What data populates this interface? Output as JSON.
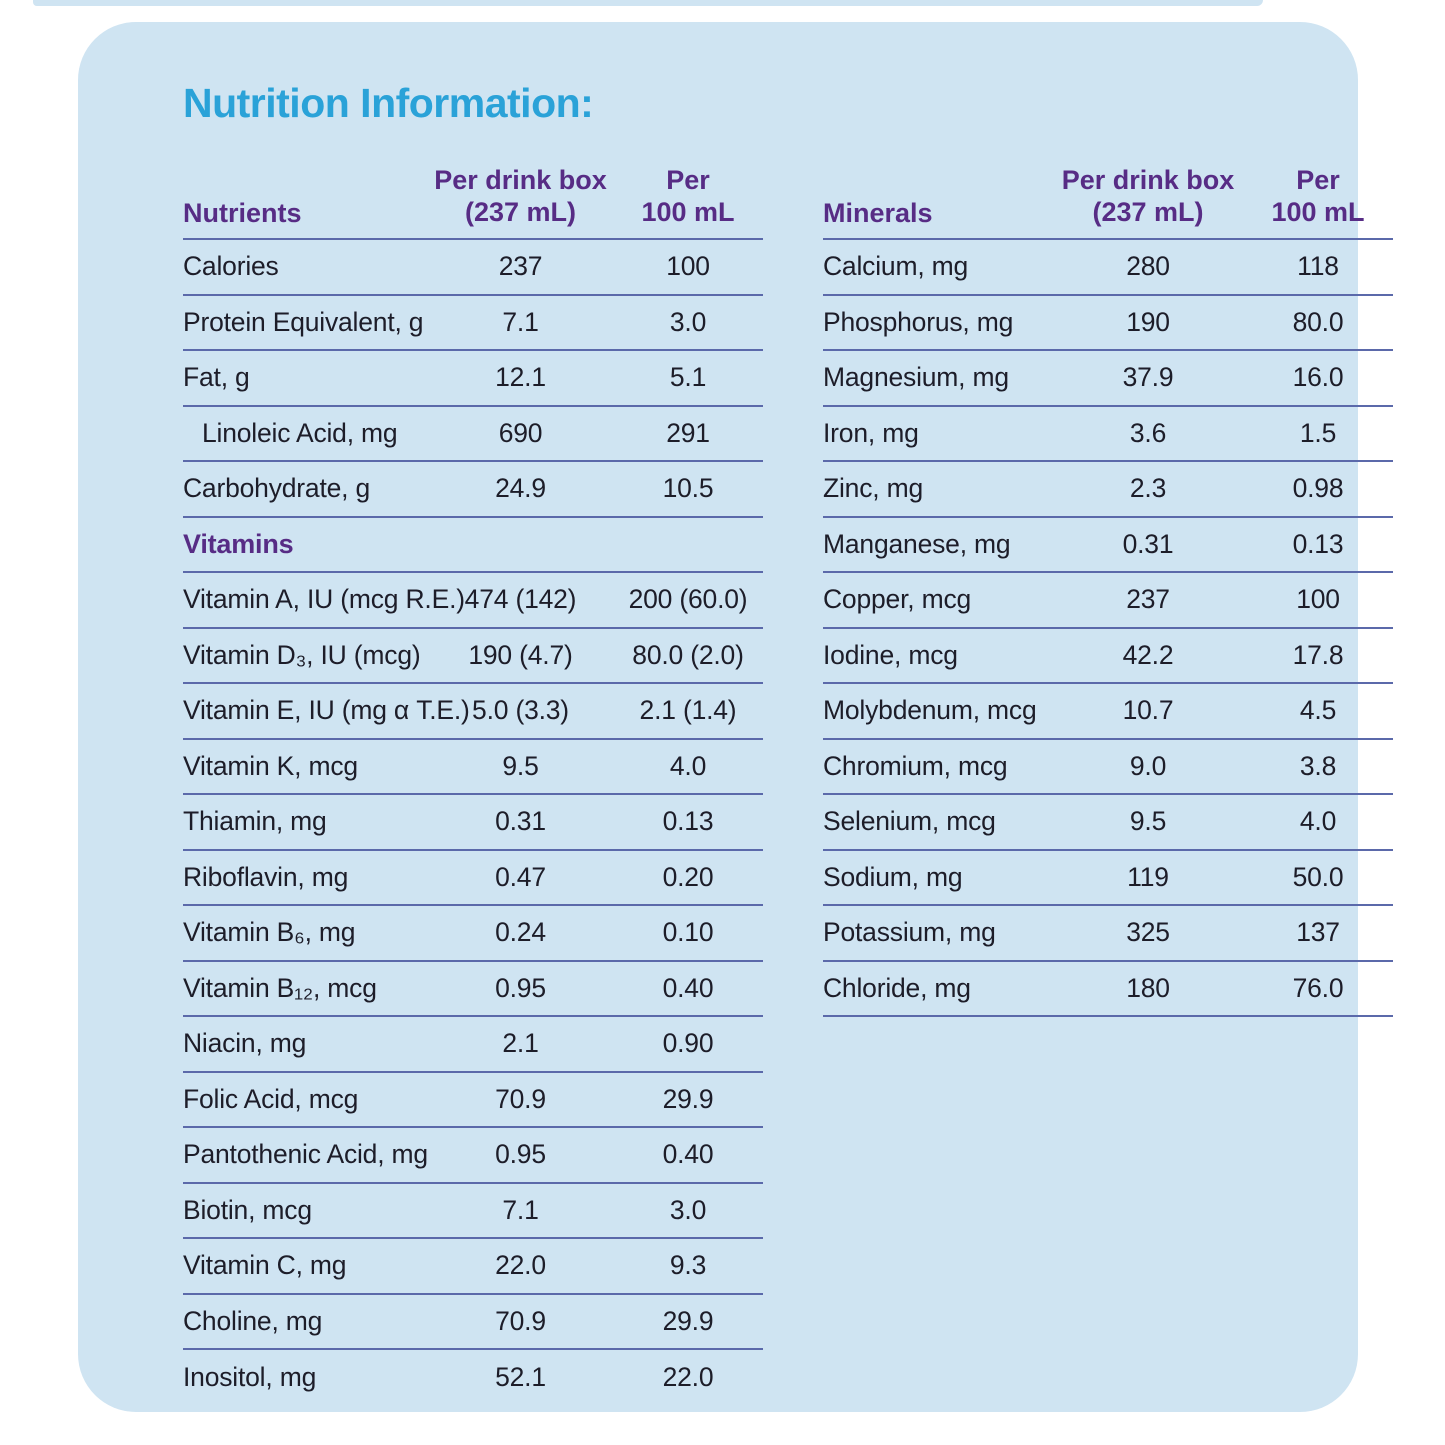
{
  "title": "Nutrition Information:",
  "colors": {
    "card_background": "#cfe4f2",
    "title": "#2aa2d8",
    "heading_purple": "#572c85",
    "body_text": "#1d1d29",
    "divider_line": "#5b69aa"
  },
  "tables": [
    {
      "name": "nutrients",
      "col_header": {
        "label": "Nutrients",
        "col1_line1": "Per drink box",
        "col1_line2": "(237 mL)",
        "col2_line1": "Per",
        "col2_line2": "100 mL"
      },
      "rows": [
        {
          "label": "Calories",
          "per_box": "237",
          "per_100": "100"
        },
        {
          "label": "Protein Equivalent, g",
          "per_box": "7.1",
          "per_100": "3.0"
        },
        {
          "label": "Fat, g",
          "per_box": "12.1",
          "per_100": "5.1"
        },
        {
          "label": "Linoleic Acid, mg",
          "per_box": "690",
          "per_100": "291",
          "indent": true
        },
        {
          "label": "Carbohydrate, g",
          "per_box": "24.9",
          "per_100": "10.5"
        },
        {
          "section": "Vitamins"
        },
        {
          "label": "Vitamin A, IU (mcg R.E.)",
          "per_box": "474 (142)",
          "per_100": "200 (60.0)"
        },
        {
          "label": "Vitamin D₃, IU (mcg)",
          "per_box": "190 (4.7)",
          "per_100": "80.0 (2.0)"
        },
        {
          "label": "Vitamin E, IU (mg α T.E.)",
          "per_box": "5.0 (3.3)",
          "per_100": "2.1 (1.4)"
        },
        {
          "label": "Vitamin K, mcg",
          "per_box": "9.5",
          "per_100": "4.0"
        },
        {
          "label": "Thiamin, mg",
          "per_box": "0.31",
          "per_100": "0.13"
        },
        {
          "label": "Riboflavin, mg",
          "per_box": "0.47",
          "per_100": "0.20"
        },
        {
          "label": "Vitamin B₆, mg",
          "per_box": "0.24",
          "per_100": "0.10"
        },
        {
          "label": "Vitamin B₁₂, mcg",
          "per_box": "0.95",
          "per_100": "0.40"
        },
        {
          "label": "Niacin, mg",
          "per_box": "2.1",
          "per_100": "0.90"
        },
        {
          "label": "Folic Acid, mcg",
          "per_box": "70.9",
          "per_100": "29.9"
        },
        {
          "label": "Pantothenic Acid, mg",
          "per_box": "0.95",
          "per_100": "0.40"
        },
        {
          "label": "Biotin, mcg",
          "per_box": "7.1",
          "per_100": "3.0"
        },
        {
          "label": "Vitamin C, mg",
          "per_box": "22.0",
          "per_100": "9.3"
        },
        {
          "label": "Choline, mg",
          "per_box": "70.9",
          "per_100": "29.9"
        },
        {
          "label": "Inositol, mg",
          "per_box": "52.1",
          "per_100": "22.0",
          "no_border": true
        }
      ]
    },
    {
      "name": "minerals",
      "col_header": {
        "label": "Minerals",
        "col1_line1": "Per drink box",
        "col1_line2": "(237 mL)",
        "col2_line1": "Per",
        "col2_line2": "100 mL"
      },
      "rows": [
        {
          "label": "Calcium, mg",
          "per_box": "280",
          "per_100": "118"
        },
        {
          "label": "Phosphorus, mg",
          "per_box": "190",
          "per_100": "80.0"
        },
        {
          "label": "Magnesium, mg",
          "per_box": "37.9",
          "per_100": "16.0"
        },
        {
          "label": "Iron, mg",
          "per_box": "3.6",
          "per_100": "1.5"
        },
        {
          "label": "Zinc, mg",
          "per_box": "2.3",
          "per_100": "0.98"
        },
        {
          "label": "Manganese, mg",
          "per_box": "0.31",
          "per_100": "0.13"
        },
        {
          "label": "Copper, mcg",
          "per_box": "237",
          "per_100": "100"
        },
        {
          "label": "Iodine, mcg",
          "per_box": "42.2",
          "per_100": "17.8"
        },
        {
          "label": "Molybdenum, mcg",
          "per_box": "10.7",
          "per_100": "4.5"
        },
        {
          "label": "Chromium, mcg",
          "per_box": "9.0",
          "per_100": "3.8"
        },
        {
          "label": "Selenium, mcg",
          "per_box": "9.5",
          "per_100": "4.0"
        },
        {
          "label": "Sodium, mg",
          "per_box": "119",
          "per_100": "50.0"
        },
        {
          "label": "Potassium, mg",
          "per_box": "325",
          "per_100": "137"
        },
        {
          "label": "Chloride, mg",
          "per_box": "180",
          "per_100": "76.0"
        }
      ]
    }
  ]
}
